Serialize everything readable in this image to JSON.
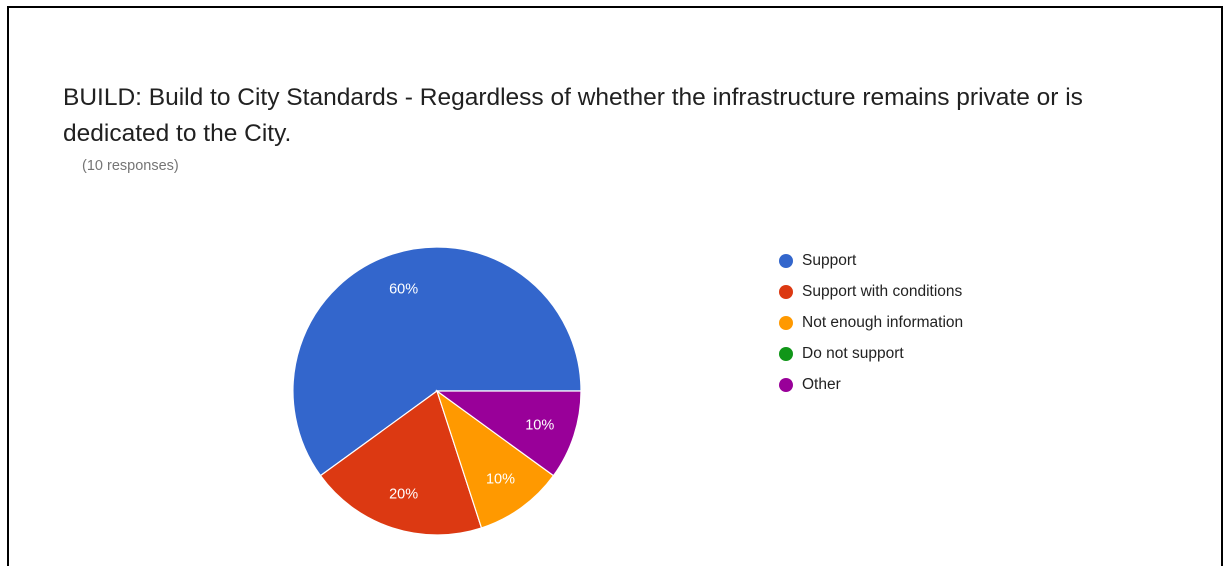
{
  "title": "BUILD: Build to City Standards - Regardless of whether the infrastructure remains private or is dedicated to the City.",
  "responses": "(10 responses)",
  "chart_data": {
    "type": "pie",
    "title": "BUILD: Build to City Standards - Regardless of whether the infrastructure remains private or is dedicated to the City.",
    "total_responses": 10,
    "categories": [
      "Support",
      "Support with conditions",
      "Not enough information",
      "Do not support",
      "Other"
    ],
    "values": [
      60,
      20,
      10,
      0,
      10
    ],
    "labels": [
      "60%",
      "20%",
      "10%",
      "",
      "10%"
    ],
    "colors": [
      "#3366cc",
      "#dc3912",
      "#ff9900",
      "#109618",
      "#990099"
    ],
    "legend_position": "right"
  }
}
